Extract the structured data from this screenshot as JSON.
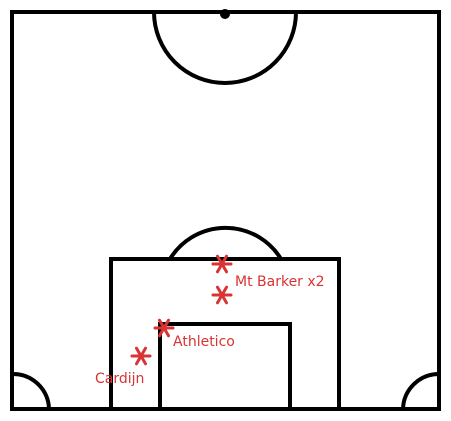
{
  "colors": {
    "pitch_lines": "#000000",
    "marker": "#d93333",
    "label": "#d93333",
    "background": "#ffffff"
  },
  "markers": [
    {
      "id": "m1",
      "label": "Mt Barker x2"
    },
    {
      "id": "m2",
      "label": ""
    },
    {
      "id": "m3",
      "label": "Athletico"
    },
    {
      "id": "m4",
      "label": "Cardijn"
    }
  ],
  "labels": {
    "mt_barker": "Mt Barker x2",
    "athletico": "Athletico",
    "cardijn": "Cardijn"
  }
}
